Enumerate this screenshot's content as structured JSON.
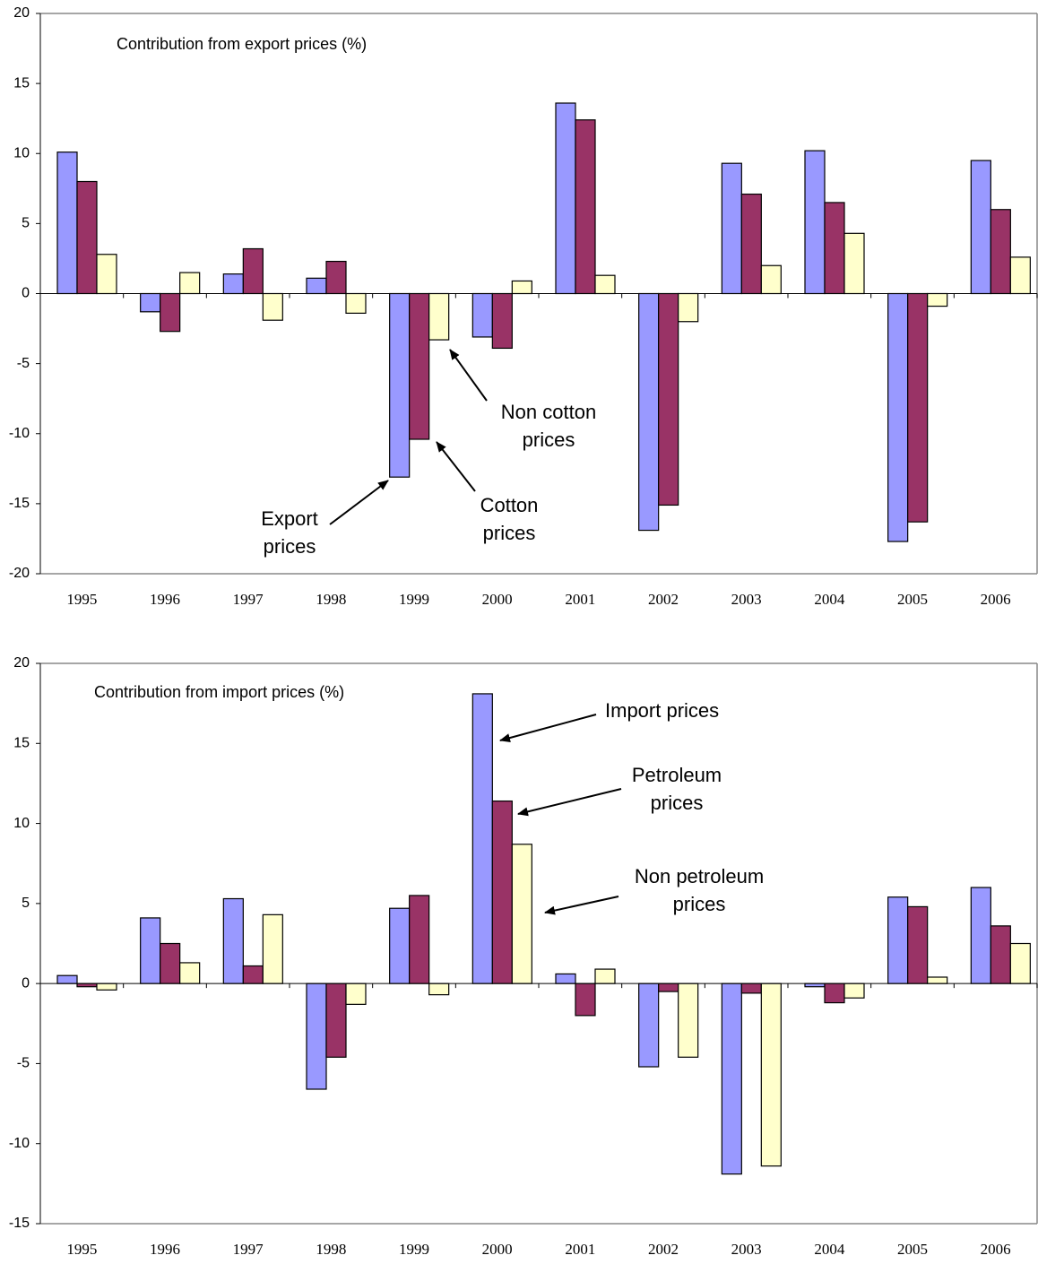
{
  "chart_data": [
    {
      "type": "bar",
      "title": "Contribution from export prices (%)",
      "categories": [
        "1995",
        "1996",
        "1997",
        "1998",
        "1999",
        "2000",
        "2001",
        "2002",
        "2003",
        "2004",
        "2005",
        "2006"
      ],
      "series": [
        {
          "color": "#9999ff",
          "values": [
            10.1,
            -1.3,
            1.4,
            1.1,
            -13.1,
            -3.1,
            13.6,
            -16.9,
            9.3,
            10.2,
            -17.7,
            9.5
          ]
        },
        {
          "color": "#993366",
          "values": [
            8.0,
            -2.7,
            3.2,
            2.3,
            -10.4,
            -3.9,
            12.4,
            -15.1,
            7.1,
            6.5,
            -16.3,
            6.0
          ]
        },
        {
          "color": "#ffffcc",
          "values": [
            2.8,
            1.5,
            -1.9,
            -1.4,
            -3.3,
            0.9,
            1.3,
            -2.0,
            2.0,
            4.3,
            -0.9,
            2.6
          ]
        }
      ],
      "ylim": [
        -20,
        20
      ],
      "yticks": [
        -20,
        -15,
        -10,
        -5,
        0,
        5,
        10,
        15,
        20
      ],
      "annotations": [
        [
          "Export",
          "prices"
        ],
        [
          "Cotton",
          "prices"
        ],
        [
          "Non cotton",
          "prices"
        ]
      ]
    },
    {
      "type": "bar",
      "title": "Contribution from import prices (%)",
      "categories": [
        "1995",
        "1996",
        "1997",
        "1998",
        "1999",
        "2000",
        "2001",
        "2002",
        "2003",
        "2004",
        "2005",
        "2006"
      ],
      "series": [
        {
          "color": "#9999ff",
          "values": [
            0.5,
            4.1,
            5.3,
            -6.6,
            4.7,
            18.1,
            0.6,
            -5.2,
            -11.9,
            -0.2,
            5.4,
            6.0
          ]
        },
        {
          "color": "#993366",
          "values": [
            -0.2,
            2.5,
            1.1,
            -4.6,
            5.5,
            11.4,
            -2.0,
            -0.5,
            -0.6,
            -1.2,
            4.8,
            3.6
          ]
        },
        {
          "color": "#ffffcc",
          "values": [
            -0.4,
            1.3,
            4.3,
            -1.3,
            -0.7,
            8.7,
            0.9,
            -4.6,
            -11.4,
            -0.9,
            0.4,
            2.5
          ]
        }
      ],
      "ylim": [
        -15,
        20
      ],
      "yticks": [
        -15,
        -10,
        -5,
        0,
        5,
        10,
        15,
        20
      ],
      "annotations": [
        [
          "Import prices"
        ],
        [
          "Petroleum",
          "prices"
        ],
        [
          "Non petroleum",
          "prices"
        ]
      ]
    }
  ]
}
